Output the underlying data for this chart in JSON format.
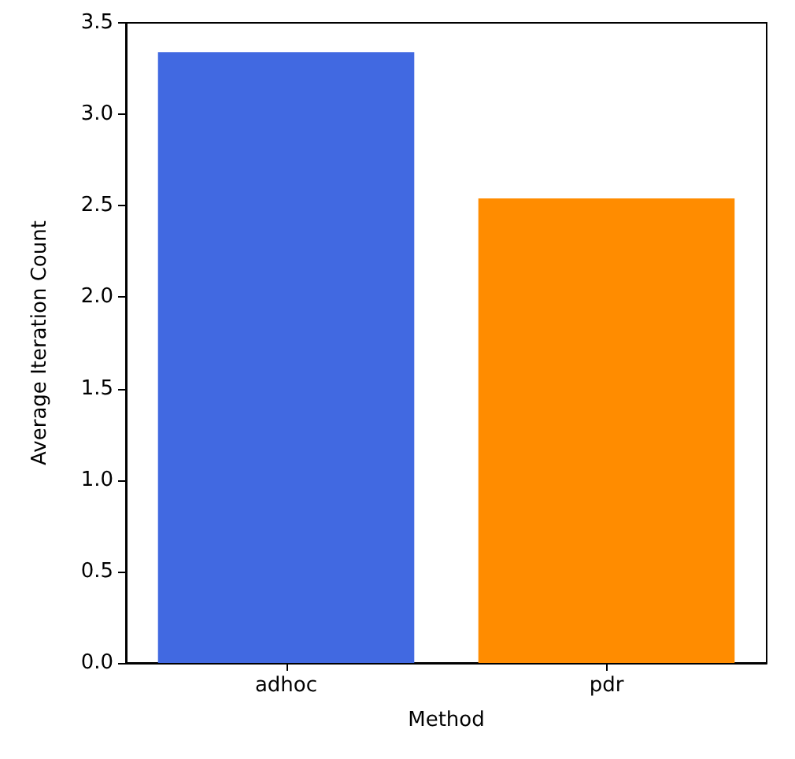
{
  "chart_data": {
    "type": "bar",
    "xlabel": "Method",
    "ylabel": "Average Iteration Count",
    "categories": [
      "adhoc",
      "pdr"
    ],
    "values": [
      3.34,
      2.54
    ],
    "colors": [
      "#4169e1",
      "#ff8c00"
    ],
    "ylim": [
      0,
      3.5
    ],
    "yticks": [
      {
        "value": 0,
        "label": "0.0"
      },
      0.5,
      {
        "value": 1,
        "label": "1.0"
      },
      1.5,
      {
        "value": 2,
        "label": "2.0"
      },
      2.5,
      {
        "value": 3,
        "label": "3.0"
      },
      3.5
    ],
    "grid": false
  }
}
